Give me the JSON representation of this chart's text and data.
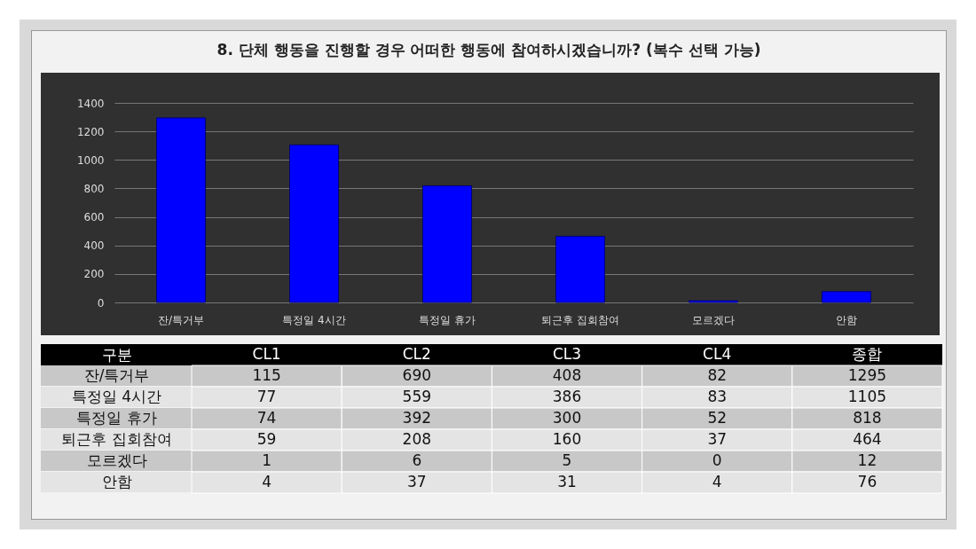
{
  "chart_data": [
    {
      "type": "bar",
      "title": "8. 단체 행동을 진행할 경우 어떠한 행동에 참여하시겠습니까? (복수 선택 가능)",
      "categories": [
        "잔/특거부",
        "특정일 4시간",
        "특정일 휴가",
        "퇴근후 집회참여",
        "모르겠다",
        "안함"
      ],
      "values": [
        1295,
        1105,
        818,
        464,
        12,
        76
      ],
      "color": "#0000ff",
      "ylim": [
        0,
        1400
      ],
      "yticks": [
        0,
        200,
        400,
        600,
        800,
        1000,
        1200,
        1400
      ],
      "grid": "y"
    },
    {
      "type": "heatmap",
      "ylabel": "구분",
      "data_labels": true,
      "categories": [
        "CL1",
        "CL2",
        "CL3",
        "CL4",
        "종합"
      ],
      "y_categories": [
        "잔/특거부",
        "특정일 4시간",
        "특정일 휴가",
        "퇴근후 집회참여",
        "모르겠다",
        "안함"
      ],
      "cells": [
        [
          115,
          690,
          408,
          82,
          1295
        ],
        [
          77,
          559,
          386,
          83,
          1105
        ],
        [
          74,
          392,
          300,
          52,
          818
        ],
        [
          59,
          208,
          160,
          37,
          464
        ],
        [
          1,
          6,
          5,
          0,
          12
        ],
        [
          4,
          37,
          31,
          4,
          76
        ]
      ]
    }
  ]
}
